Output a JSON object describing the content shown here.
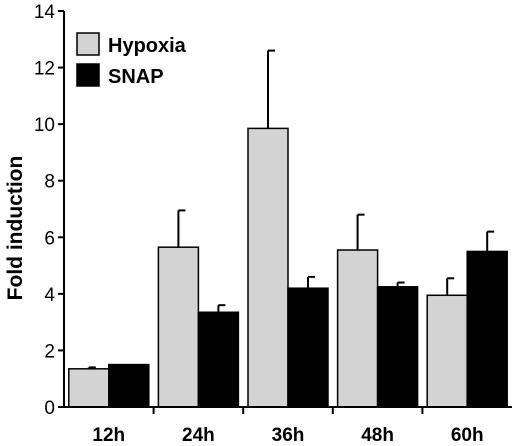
{
  "chart_data": {
    "type": "bar",
    "title": "",
    "xlabel": "",
    "ylabel": "Fold induction",
    "ylim": [
      0,
      14
    ],
    "yticks": [
      0,
      2,
      4,
      6,
      8,
      10,
      12,
      14
    ],
    "categories": [
      "12h",
      "24h",
      "36h",
      "48h",
      "60h"
    ],
    "series": [
      {
        "name": "Hypoxia",
        "color": "#d3d3d3",
        "values": [
          1.35,
          5.65,
          9.85,
          5.55,
          3.95
        ],
        "errors": [
          0.05,
          1.3,
          2.75,
          1.25,
          0.6
        ]
      },
      {
        "name": "SNAP",
        "color": "#000000",
        "values": [
          1.5,
          3.35,
          4.2,
          4.25,
          5.5
        ],
        "errors": [
          0.0,
          0.25,
          0.4,
          0.15,
          0.7
        ]
      }
    ],
    "legend_position": "top-left",
    "grid": false
  }
}
